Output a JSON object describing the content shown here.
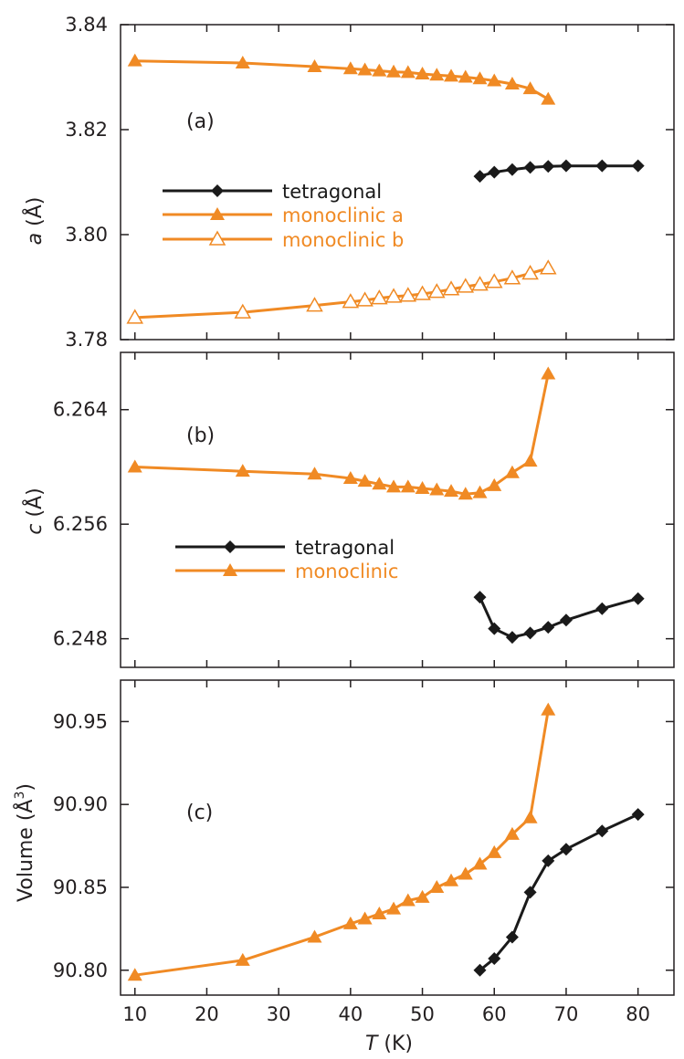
{
  "colors": {
    "tetragonal": "#1a1a1a",
    "monoclinic": "#f08a24",
    "axis": "#231f20"
  },
  "xaxis": {
    "label_var": "T",
    "label_unit": " (K)",
    "range": [
      8,
      85
    ],
    "ticks": [
      10,
      20,
      30,
      40,
      50,
      60,
      70,
      80
    ],
    "tick_labels": [
      "10",
      "20",
      "30",
      "40",
      "50",
      "60",
      "70",
      "80"
    ]
  },
  "chart_data": [
    {
      "type": "line",
      "panel": "(a)",
      "ylabel_var": "a",
      "ylabel_unit": " (Å)",
      "ylim": [
        3.78,
        3.84
      ],
      "yticks": [
        3.78,
        3.8,
        3.82,
        3.84
      ],
      "ytick_labels": [
        "3.78",
        "3.80",
        "3.82",
        "3.84"
      ],
      "legend": [
        "tetragonal",
        "monoclinic a",
        "monoclinic b"
      ],
      "legend_position": "center-left",
      "series": [
        {
          "name": "tetragonal",
          "color": "tetragonal",
          "marker": "diamond",
          "x": [
            58,
            60,
            62.5,
            65,
            67.5,
            70,
            75,
            80
          ],
          "y": [
            3.8111,
            3.8119,
            3.8124,
            3.8128,
            3.813,
            3.8131,
            3.8131,
            3.8131
          ]
        },
        {
          "name": "monoclinic a",
          "color": "monoclinic",
          "marker": "triangle-filled",
          "x": [
            10,
            25,
            35,
            40,
            42,
            44,
            46,
            48,
            50,
            52,
            54,
            56,
            58,
            60,
            62.5,
            65,
            67.5
          ],
          "y": [
            3.8331,
            3.8327,
            3.832,
            3.8316,
            3.8314,
            3.8312,
            3.831,
            3.8309,
            3.8306,
            3.8304,
            3.8302,
            3.83,
            3.8297,
            3.8293,
            3.8287,
            3.8278,
            3.8258
          ]
        },
        {
          "name": "monoclinic b",
          "color": "monoclinic",
          "marker": "triangle-open",
          "x": [
            10,
            25,
            35,
            40,
            42,
            44,
            46,
            48,
            50,
            52,
            54,
            56,
            58,
            60,
            62.5,
            65,
            67.5
          ],
          "y": [
            3.7842,
            3.7852,
            3.7865,
            3.7872,
            3.7875,
            3.7879,
            3.7882,
            3.7884,
            3.7887,
            3.7891,
            3.7896,
            3.7901,
            3.7905,
            3.791,
            3.7917,
            3.7926,
            3.7936
          ]
        }
      ]
    },
    {
      "type": "line",
      "panel": "(b)",
      "ylabel_var": "c",
      "ylabel_unit": " (Å)",
      "ylim": [
        6.246,
        6.268
      ],
      "yticks": [
        6.248,
        6.256,
        6.264
      ],
      "ytick_labels": [
        "6.248",
        "6.256",
        "6.264"
      ],
      "legend": [
        "tetragonal",
        "monoclinic"
      ],
      "legend_position": "center",
      "series": [
        {
          "name": "tetragonal",
          "color": "tetragonal",
          "marker": "diamond",
          "x": [
            58,
            60,
            62.5,
            65,
            67.5,
            70,
            75,
            80
          ],
          "y": [
            6.2509,
            6.2487,
            6.2481,
            6.2484,
            6.2488,
            6.2493,
            6.2501,
            6.2508
          ]
        },
        {
          "name": "monoclinic",
          "color": "monoclinic",
          "marker": "triangle-filled",
          "x": [
            10,
            25,
            35,
            40,
            42,
            44,
            46,
            48,
            50,
            52,
            54,
            56,
            58,
            60,
            62.5,
            65,
            67.5
          ],
          "y": [
            6.26,
            6.2597,
            6.2595,
            6.2592,
            6.259,
            6.2588,
            6.2586,
            6.2586,
            6.2585,
            6.2584,
            6.2583,
            6.2581,
            6.2582,
            6.2587,
            6.2596,
            6.2604,
            6.2665
          ]
        }
      ]
    },
    {
      "type": "line",
      "panel": "(c)",
      "ylabel_var": "Volume",
      "ylabel_unit": " (Å",
      "ylabel_sup": "3",
      "ylabel_close": ")",
      "ylim": [
        90.785,
        90.975
      ],
      "yticks": [
        90.8,
        90.85,
        90.9,
        90.95
      ],
      "ytick_labels": [
        "90.80",
        "90.85",
        "90.90",
        "90.95"
      ],
      "legend": [],
      "series": [
        {
          "name": "tetragonal",
          "color": "tetragonal",
          "marker": "diamond",
          "x": [
            58,
            60,
            62.5,
            65,
            67.5,
            70,
            75,
            80
          ],
          "y": [
            90.8,
            90.807,
            90.82,
            90.847,
            90.866,
            90.873,
            90.884,
            90.894
          ]
        },
        {
          "name": "monoclinic",
          "color": "monoclinic",
          "marker": "triangle-filled",
          "x": [
            10,
            25,
            35,
            40,
            42,
            44,
            46,
            48,
            50,
            52,
            54,
            56,
            58,
            60,
            62.5,
            65,
            67.5
          ],
          "y": [
            90.797,
            90.806,
            90.82,
            90.828,
            90.831,
            90.834,
            90.837,
            90.842,
            90.844,
            90.85,
            90.854,
            90.858,
            90.864,
            90.871,
            90.882,
            90.892,
            90.957
          ]
        }
      ]
    }
  ]
}
